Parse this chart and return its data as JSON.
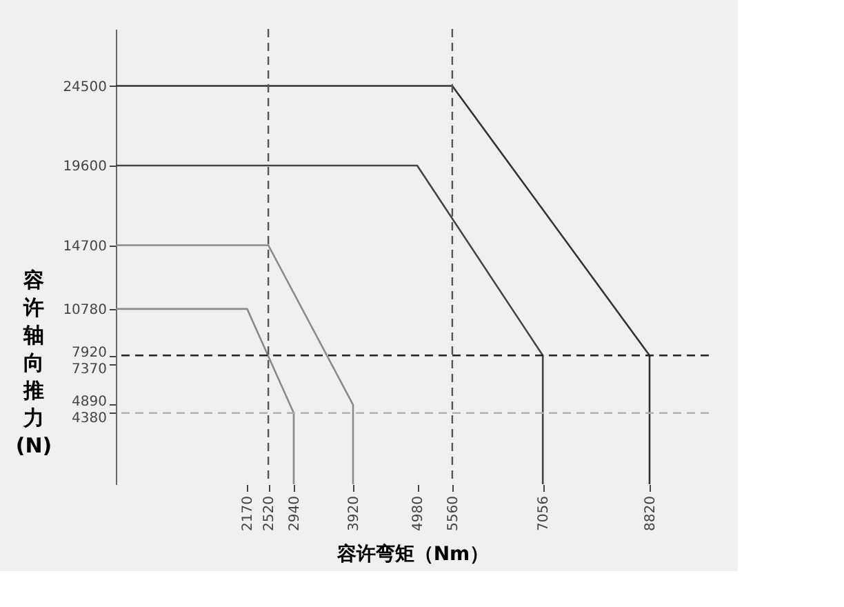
{
  "chart_data": {
    "type": "line",
    "xlabel": "容许弯矩（Nm）",
    "ylabel": "容许轴向推力 (N)",
    "xlim": [
      0,
      9800
    ],
    "ylim": [
      0,
      28000
    ],
    "xticks": [
      2170,
      2520,
      2940,
      3920,
      4980,
      5560,
      7056,
      8820
    ],
    "yticks": [
      4380,
      4890,
      7370,
      7920,
      10780,
      14700,
      19600,
      24500
    ],
    "marker": "none",
    "line_style": "solid",
    "legend": false,
    "grid": false,
    "series": [
      {
        "color": "#333333",
        "x": [
          0,
          5560,
          8820,
          8820
        ],
        "values": [
          24500,
          24500,
          7920,
          0
        ]
      },
      {
        "color": "#444444",
        "x": [
          0,
          4980,
          7056,
          7056
        ],
        "values": [
          19600,
          19600,
          7920,
          0
        ]
      },
      {
        "color": "#8a8a8a",
        "x": [
          0,
          2520,
          3920,
          3920
        ],
        "values": [
          14700,
          14700,
          4890,
          0
        ]
      },
      {
        "color": "#8a8a8a",
        "x": [
          0,
          2170,
          2940,
          2940
        ],
        "values": [
          10780,
          10780,
          4380,
          0
        ]
      }
    ],
    "ref_lines": [
      {
        "axis": "y",
        "value": 7920,
        "color": "#222222",
        "line_style": "dashed"
      },
      {
        "axis": "y",
        "value": 4380,
        "color": "#b0b0b0",
        "line_style": "dashed"
      },
      {
        "axis": "x",
        "value": 5560,
        "color": "#555555",
        "line_style": "dashed"
      },
      {
        "axis": "x",
        "value": 2520,
        "color": "#555555",
        "line_style": "dashed"
      }
    ]
  }
}
